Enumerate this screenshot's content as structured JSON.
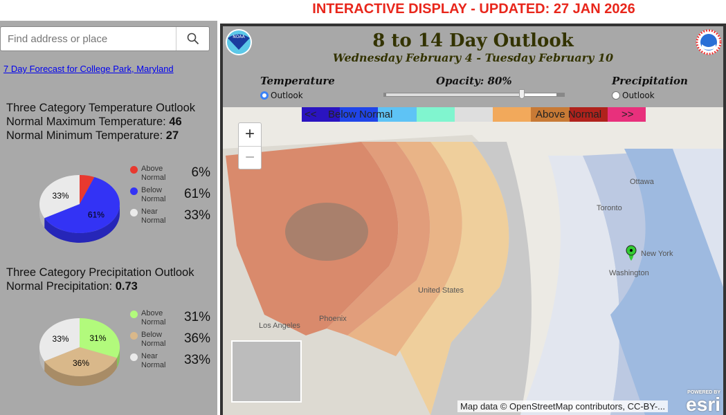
{
  "banner": "INTERACTIVE DISPLAY - UPDATED: 27 JAN 2026",
  "search": {
    "placeholder": "Find address or place",
    "icon": "search-icon"
  },
  "forecast_link": "7 Day Forecast for College Park, Maryland",
  "temp": {
    "heading": "Three Category Temperature Outlook",
    "max_label": "Normal Maximum Temperature: ",
    "max": "46",
    "min_label": "Normal Minimum Temperature: ",
    "min": "27",
    "slices": [
      {
        "label": "Above Normal",
        "value": 6,
        "text": "6%",
        "color": "#e8392f",
        "side": "#b02a22"
      },
      {
        "label": "Below Normal",
        "value": 61,
        "text": "61%",
        "color": "#3333f5",
        "side": "#2626b8"
      },
      {
        "label": "Near Normal",
        "value": 33,
        "text": "33%",
        "color": "#eaeaea",
        "side": "#b8b8b8"
      }
    ]
  },
  "precip": {
    "heading": "Three Category Precipitation Outlook",
    "normal_label": "Normal Precipitation: ",
    "normal": "0.73",
    "slices": [
      {
        "label": "Above Normal",
        "value": 31,
        "text": "31%",
        "color": "#b2fa7c",
        "side": "#86c35a"
      },
      {
        "label": "Below Normal",
        "value": 36,
        "text": "36%",
        "color": "#d9b88a",
        "side": "#a88c66"
      },
      {
        "label": "Near Normal",
        "value": 33,
        "text": "33%",
        "color": "#eaeaea",
        "side": "#b8b8b8"
      }
    ]
  },
  "header": {
    "title": "8 to 14 Day Outlook",
    "subtitle": "Wednesday February 4 - Tuesday February 10",
    "temperature": "Temperature",
    "precipitation": "Precipitation",
    "outlook": "Outlook",
    "opacity_label": "Opacity: 80%",
    "opacity": 80
  },
  "legend": {
    "prev": "<<",
    "below": "Below Normal",
    "above": "Above Normal",
    "next": ">>",
    "colors": [
      "#2a14c0",
      "#2045e8",
      "#5ec3f5",
      "#80f5cf",
      "#dedede",
      "#f2a95b",
      "#c87a35",
      "#b0221c",
      "#e8307c"
    ]
  },
  "map": {
    "zoom_in": "+",
    "zoom_out": "−",
    "cities": [
      "Ottawa",
      "Toronto",
      "New York",
      "Washington",
      "United States",
      "Los Angeles",
      "Phoenix"
    ],
    "attribution": "Map data © OpenStreetMap contributors, CC-BY-...",
    "esri_powered": "POWERED BY",
    "esri": "esri"
  }
}
